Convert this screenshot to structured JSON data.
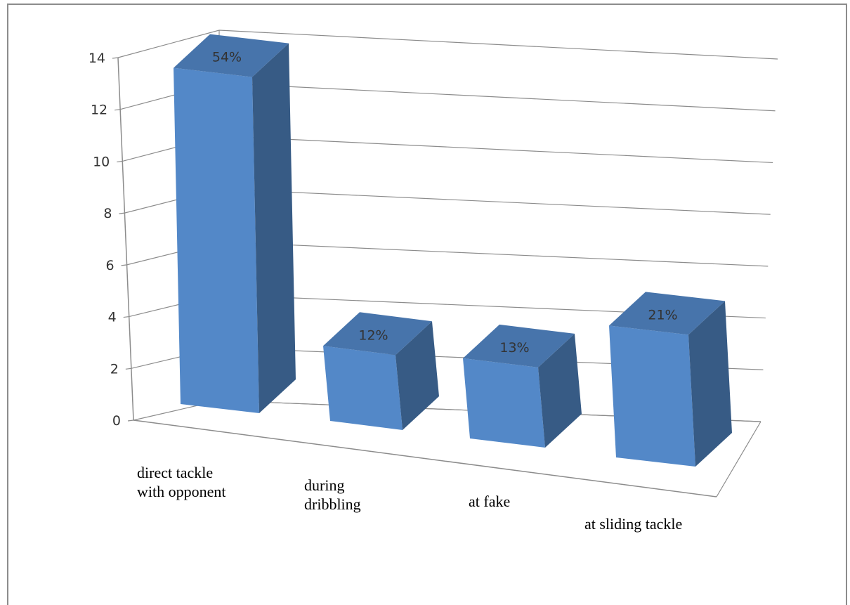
{
  "chart_data": {
    "type": "bar",
    "style": "3d-column",
    "categories": [
      [
        "direct tackle",
        "with opponent"
      ],
      [
        "during",
        "dribbling"
      ],
      [
        "at fake"
      ],
      [
        "at sliding tackle"
      ]
    ],
    "values": [
      13,
      2.9,
      3.1,
      5.1
    ],
    "data_labels": [
      "54%",
      "12%",
      "13%",
      "21%"
    ],
    "y_ticks": [
      "0",
      "2",
      "4",
      "6",
      "8",
      "10",
      "12",
      "14"
    ],
    "ylim": [
      0,
      14
    ],
    "grid": true,
    "legend": "none",
    "colors": {
      "front": "#5388c8",
      "side": "#375b85",
      "top": "#4774ab",
      "grid": "#8c8c8c"
    }
  }
}
